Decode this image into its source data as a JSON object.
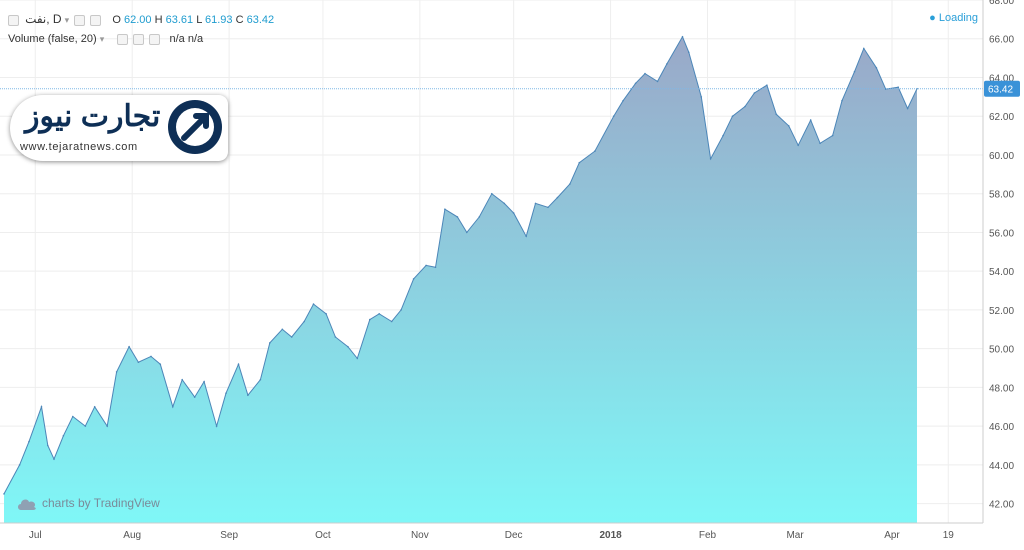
{
  "header": {
    "symbol": "نفت, D",
    "o_label": "O",
    "o_value": "62.00",
    "h_label": "H",
    "h_value": "63.61",
    "l_label": "L",
    "l_value": "61.93",
    "c_label": "C",
    "c_value": "63.42",
    "volume_label": "Volume (false, 20)",
    "volume_values": "n/a n/a",
    "loading": "Loading"
  },
  "logo": {
    "brand": "تجارت نیوز",
    "url": "www.tejaratnews.com"
  },
  "watermark": {
    "text": "charts by TradingView"
  },
  "colors": {
    "fill_top": "#9aa8c8",
    "fill_bottom": "#7ff7f7",
    "line": "#4c86b8",
    "last_price_line": "#7fb8e6",
    "price_badge": "#3a92d8"
  },
  "chart_data": {
    "type": "area",
    "title": "",
    "xlabel": "",
    "ylabel": "",
    "ylim": [
      41,
      68
    ],
    "yticks": [
      "42.00",
      "44.00",
      "46.00",
      "48.00",
      "50.00",
      "52.00",
      "54.00",
      "56.00",
      "58.00",
      "60.00",
      "62.00",
      "64.00",
      "66.00",
      "68.00"
    ],
    "xticks": [
      "Jul",
      "Aug",
      "Sep",
      "Oct",
      "Nov",
      "Dec",
      "2018",
      "Feb",
      "Mar",
      "Apr",
      "19"
    ],
    "last_price": 63.42,
    "last_price_label": "63.42",
    "grid": true,
    "series": [
      {
        "x": [
          "2017-06-21",
          "2017-06-26",
          "2017-06-29",
          "2017-07-03",
          "2017-07-05",
          "2017-07-07",
          "2017-07-10",
          "2017-07-13",
          "2017-07-17",
          "2017-07-20",
          "2017-07-24",
          "2017-07-27",
          "2017-07-31",
          "2017-08-03",
          "2017-08-07",
          "2017-08-10",
          "2017-08-14",
          "2017-08-17",
          "2017-08-21",
          "2017-08-24",
          "2017-08-28",
          "2017-08-31",
          "2017-09-04",
          "2017-09-07",
          "2017-09-11",
          "2017-09-14",
          "2017-09-18",
          "2017-09-21",
          "2017-09-25",
          "2017-09-28",
          "2017-10-02",
          "2017-10-05",
          "2017-10-09",
          "2017-10-12",
          "2017-10-16",
          "2017-10-19",
          "2017-10-23",
          "2017-10-26",
          "2017-10-30",
          "2017-11-03",
          "2017-11-06",
          "2017-11-09",
          "2017-11-13",
          "2017-11-16",
          "2017-11-20",
          "2017-11-24",
          "2017-11-28",
          "2017-12-01",
          "2017-12-05",
          "2017-12-08",
          "2017-12-12",
          "2017-12-15",
          "2017-12-19",
          "2017-12-22",
          "2017-12-27",
          "2018-01-02",
          "2018-01-05",
          "2018-01-09",
          "2018-01-12",
          "2018-01-16",
          "2018-01-19",
          "2018-01-24",
          "2018-01-26",
          "2018-01-30",
          "2018-02-02",
          "2018-02-06",
          "2018-02-09",
          "2018-02-13",
          "2018-02-16",
          "2018-02-20",
          "2018-02-23",
          "2018-02-27",
          "2018-03-02",
          "2018-03-06",
          "2018-03-09",
          "2018-03-13",
          "2018-03-16",
          "2018-03-20",
          "2018-03-23",
          "2018-03-27",
          "2018-03-30",
          "2018-04-03",
          "2018-04-06",
          "2018-04-09"
        ],
        "values": [
          42.5,
          44.0,
          45.2,
          47.0,
          45.0,
          44.3,
          45.5,
          46.5,
          46.0,
          47.0,
          46.0,
          48.8,
          50.1,
          49.3,
          49.6,
          49.2,
          47.0,
          48.4,
          47.5,
          48.3,
          46.0,
          47.7,
          49.2,
          47.6,
          48.4,
          50.3,
          51.0,
          50.6,
          51.4,
          52.3,
          51.8,
          50.6,
          50.1,
          49.5,
          51.5,
          51.8,
          51.4,
          52.0,
          53.6,
          54.3,
          54.2,
          57.2,
          56.8,
          56.0,
          56.8,
          58.0,
          57.5,
          57.0,
          55.8,
          57.5,
          57.3,
          57.8,
          58.5,
          59.6,
          60.2,
          62.0,
          62.8,
          63.7,
          64.2,
          63.8,
          64.7,
          66.1,
          65.3,
          63.0,
          59.8,
          61.0,
          62.0,
          62.5,
          63.2,
          63.6,
          62.1,
          61.5,
          60.5,
          61.8,
          60.6,
          61.0,
          62.8,
          64.3,
          65.5,
          64.5,
          63.4,
          63.5,
          62.4,
          63.42
        ]
      }
    ]
  }
}
